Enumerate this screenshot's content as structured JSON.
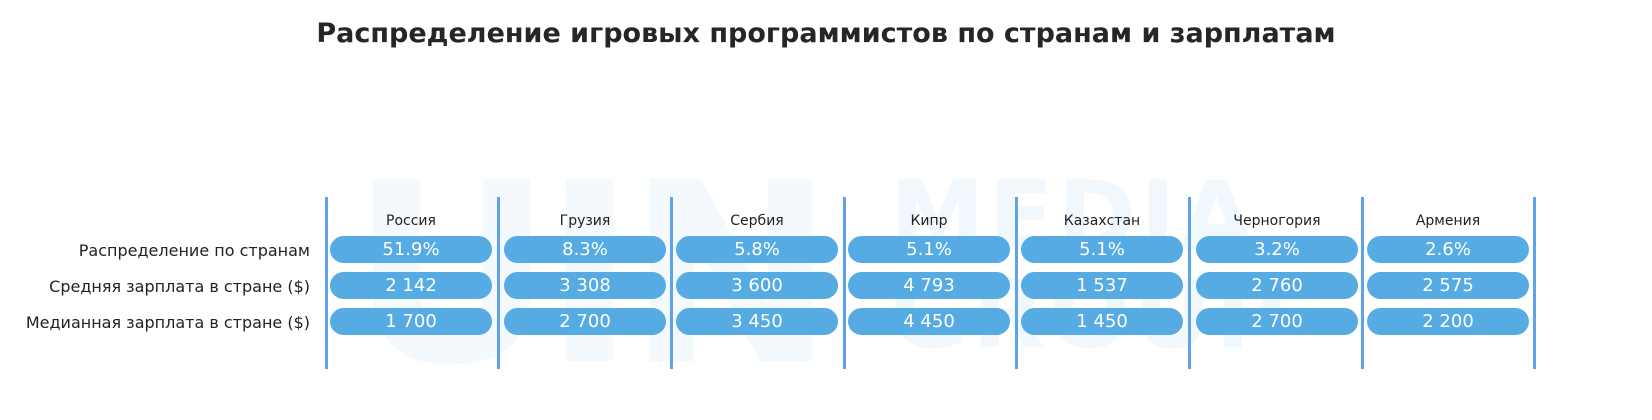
{
  "title": "Распределение игровых программистов по странам и зарплатам",
  "watermark": {
    "big": "UIN",
    "line1": "MEDIA",
    "line2": "GROUP"
  },
  "colors": {
    "pill": "#56abe3",
    "divider": "#5ea2ea"
  },
  "chart_data": {
    "type": "table",
    "columns": [
      "Россия",
      "Грузия",
      "Сербия",
      "Кипр",
      "Казахстан",
      "Черногория",
      "Армения"
    ],
    "rows": [
      {
        "label": "Распределение по странам",
        "values": [
          "51.9%",
          "8.3%",
          "5.8%",
          "5.1%",
          "5.1%",
          "3.2%",
          "2.6%"
        ]
      },
      {
        "label": "Средняя зарплата в стране ($)",
        "values": [
          "2 142",
          "3 308",
          "3 600",
          "4 793",
          "1 537",
          "2 760",
          "2 575"
        ]
      },
      {
        "label": "Медианная зарплата в стране ($)",
        "values": [
          "1 700",
          "2 700",
          "3 450",
          "4 450",
          "1 450",
          "2 700",
          "2 200"
        ]
      }
    ]
  }
}
